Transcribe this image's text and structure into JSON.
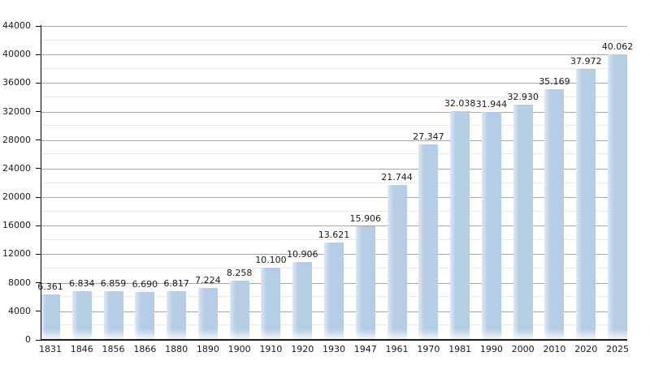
{
  "chart_data": {
    "type": "bar",
    "title": "",
    "xlabel": "",
    "ylabel": "",
    "categories": [
      "1831",
      "1846",
      "1856",
      "1866",
      "1880",
      "1890",
      "1900",
      "1910",
      "1920",
      "1930",
      "1947",
      "1961",
      "1970",
      "1981",
      "1990",
      "2000",
      "2010",
      "2020",
      "2025"
    ],
    "values": [
      6361,
      6834,
      6859,
      6690,
      6817,
      7224,
      8258,
      10100,
      10906,
      13621,
      15906,
      21744,
      27347,
      32038,
      31944,
      32930,
      35169,
      37972,
      40062
    ],
    "value_labels": [
      "6.361",
      "6.834",
      "6.859",
      "6.690",
      "6.817",
      "7.224",
      "8.258",
      "10.100",
      "10.906",
      "13.621",
      "15.906",
      "21.744",
      "27.347",
      "32.038",
      "31.944",
      "32.930",
      "35.169",
      "37.972",
      "40.062"
    ],
    "ylim": [
      0,
      44000
    ],
    "y_major_tick_step": 4000,
    "y_minor_tick_step": 2000,
    "y_tick_labels": [
      "0",
      "4000",
      "8000",
      "12000",
      "16000",
      "20000",
      "24000",
      "28000",
      "32000",
      "36000",
      "40000",
      "44000"
    ],
    "grid": "on",
    "legend": "none",
    "colors": {
      "bar_fill": "#b5cee6",
      "bar_left_highlight": "#dce8f4",
      "bar_bottom_fade": "rgba(255,255,255,0.88)",
      "major_gridline": "#a6a6a6",
      "minor_gridline": "#e9e9e9",
      "axis": "#000000",
      "text": "#1a1a1a",
      "background": "#ffffff"
    }
  }
}
